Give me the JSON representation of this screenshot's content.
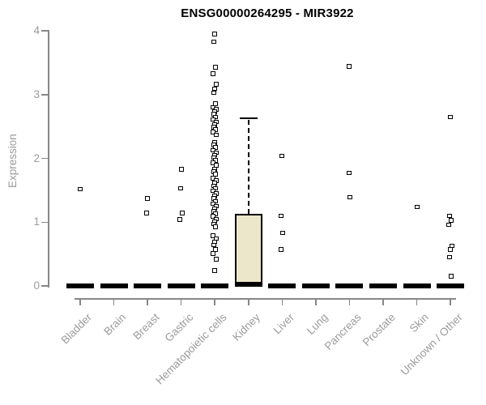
{
  "chart_data": {
    "type": "boxplot",
    "title": "ENSG00000264295 - MIR3922",
    "ylabel": "Expression",
    "xlabel": "",
    "ylim": [
      0,
      4
    ],
    "yticks": [
      0,
      1,
      2,
      3,
      4
    ],
    "grid": false,
    "legend": "none",
    "categories": [
      "Bladder",
      "Brain",
      "Breast",
      "Gastric",
      "Hematopoietic cells",
      "Kidney",
      "Liver",
      "Lung",
      "Pancreas",
      "Prostate",
      "Skin",
      "Unknown / Other"
    ],
    "boxes": [
      {
        "category": "Bladder",
        "q1": 0,
        "median": 0,
        "q3": 0,
        "whisker_low": 0,
        "whisker_high": 0,
        "outliers": [
          1.52
        ]
      },
      {
        "category": "Brain",
        "q1": 0,
        "median": 0,
        "q3": 0,
        "whisker_low": 0,
        "whisker_high": 0,
        "outliers": []
      },
      {
        "category": "Breast",
        "q1": 0,
        "median": 0,
        "q3": 0,
        "whisker_low": 0,
        "whisker_high": 0,
        "outliers": [
          1.37,
          1.14
        ]
      },
      {
        "category": "Gastric",
        "q1": 0,
        "median": 0,
        "q3": 0,
        "whisker_low": 0,
        "whisker_high": 0,
        "outliers": [
          1.83,
          1.53,
          1.14,
          1.04
        ]
      },
      {
        "category": "Hematopoietic cells",
        "q1": 0,
        "median": 0,
        "q3": 0,
        "whisker_low": 0,
        "whisker_high": 0,
        "outliers": [
          3.95,
          3.83,
          3.43,
          3.33,
          3.16,
          3.09,
          3.03,
          2.86,
          2.8,
          2.77,
          2.73,
          2.69,
          2.65,
          2.61,
          2.57,
          2.53,
          2.49,
          2.45,
          2.41,
          2.37,
          2.25,
          2.21,
          2.17,
          2.13,
          2.09,
          2.05,
          2.01,
          1.97,
          1.93,
          1.89,
          1.83,
          1.79,
          1.75,
          1.69,
          1.65,
          1.61,
          1.57,
          1.53,
          1.49,
          1.45,
          1.41,
          1.37,
          1.33,
          1.29,
          1.25,
          1.21,
          1.17,
          1.13,
          1.09,
          1.05,
          1.01,
          0.97,
          0.93,
          0.79,
          0.74,
          0.69,
          0.64,
          0.57,
          0.51,
          0.42,
          0.24
        ]
      },
      {
        "category": "Kidney",
        "q1": 0,
        "median": 0.02,
        "q3": 1.13,
        "whisker_low": 0,
        "whisker_high": 2.63,
        "outliers": []
      },
      {
        "category": "Liver",
        "q1": 0,
        "median": 0,
        "q3": 0,
        "whisker_low": 0,
        "whisker_high": 0,
        "outliers": [
          2.04,
          1.1,
          0.83,
          0.57
        ]
      },
      {
        "category": "Lung",
        "q1": 0,
        "median": 0,
        "q3": 0,
        "whisker_low": 0,
        "whisker_high": 0,
        "outliers": []
      },
      {
        "category": "Pancreas",
        "q1": 0,
        "median": 0,
        "q3": 0,
        "whisker_low": 0,
        "whisker_high": 0,
        "outliers": [
          3.44,
          1.77,
          1.39
        ]
      },
      {
        "category": "Prostate",
        "q1": 0,
        "median": 0,
        "q3": 0,
        "whisker_low": 0,
        "whisker_high": 0,
        "outliers": []
      },
      {
        "category": "Skin",
        "q1": 0,
        "median": 0,
        "q3": 0,
        "whisker_low": 0,
        "whisker_high": 0,
        "outliers": [
          1.24
        ]
      },
      {
        "category": "Unknown / Other",
        "q1": 0,
        "median": 0,
        "q3": 0,
        "whisker_low": 0,
        "whisker_high": 0,
        "outliers": [
          2.65,
          1.1,
          1.03,
          0.96,
          0.63,
          0.57,
          0.45,
          0.15
        ]
      }
    ],
    "colors": {
      "background": "#ffffff",
      "box_fill": "#ece6cb",
      "box_border": "#000000",
      "median": "#000000",
      "outlier_border": "#000000",
      "outlier_fill": "#ffffff",
      "axis_line": "#878787",
      "axis_text": "#9b9b9b",
      "title": "#000000"
    }
  }
}
